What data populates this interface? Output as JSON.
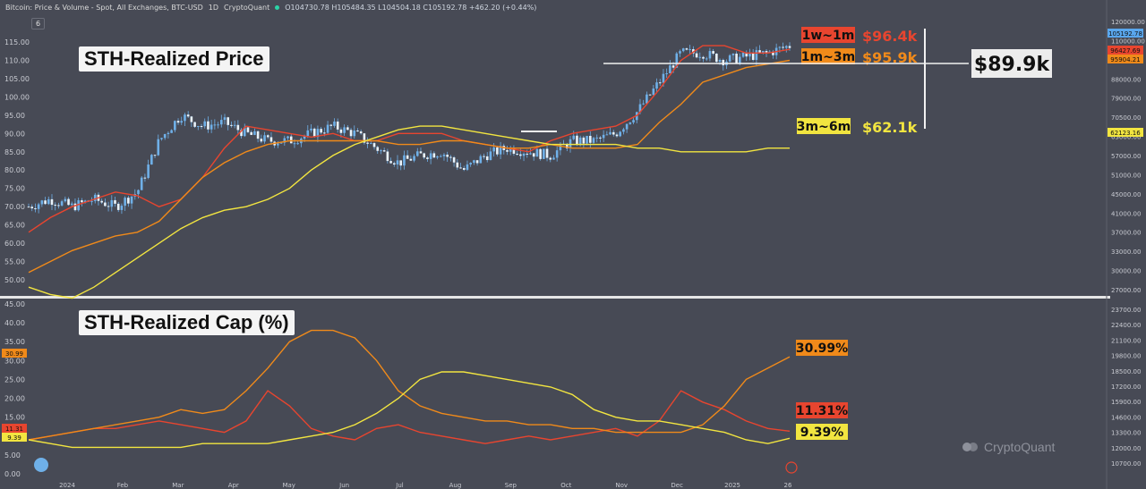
{
  "header": {
    "title": "Bitcoin: Price & Volume - Spot, All Exchanges, BTC-USD",
    "interval": "1D",
    "source": "CryptoQuant",
    "ohlc": "O104730.78 H105484.35 L104504.18 C105192.78 +462.20 (+0.44%)",
    "chip": "6"
  },
  "brand": "CryptoQuant",
  "colors": {
    "bg": "#474a55",
    "candles": "#6fb0e8",
    "red": "#e8452f",
    "orange": "#f08a1a",
    "yellow": "#f2e540"
  },
  "chart_data": [
    {
      "type": "line",
      "title": "STH-Realized Price",
      "yaxis_left": {
        "range": [
          0,
          120
        ],
        "ticks": [
          "50.00",
          "55.00",
          "60.00",
          "65.00",
          "70.00",
          "75.00",
          "80.00",
          "85.00",
          "90.00",
          "95.00",
          "100.00",
          "105.00",
          "110.00",
          "115.00"
        ]
      },
      "yaxis_right": {
        "scale": "log",
        "ticks": [
          "27000.00",
          "30000.00",
          "33000.00",
          "37000.00",
          "41000.00",
          "45000.00",
          "51000.00",
          "57000.00",
          "63000.00",
          "70500.00",
          "79000.00",
          "88000.00",
          "98500.00",
          "110000.00",
          "120000.00"
        ]
      },
      "x_ticks": [
        "2024",
        "Feb",
        "Mar",
        "Apr",
        "May",
        "Jun",
        "Jul",
        "Aug",
        "Sep",
        "Oct",
        "Nov",
        "Dec",
        "2025",
        "26"
      ],
      "price_marker": "105192.78",
      "series": [
        {
          "name": "1w~1m",
          "label_value": "$96.4k",
          "axis_value": "96427.69",
          "color": "#e8452f",
          "values": [
            63,
            67,
            70,
            72,
            74,
            73,
            70,
            72,
            78,
            86,
            92,
            91,
            90,
            89,
            90,
            88,
            88,
            90,
            90,
            90,
            88,
            87,
            86,
            85,
            88,
            90,
            91,
            92,
            95,
            102,
            110,
            114,
            114,
            112,
            112,
            113
          ]
        },
        {
          "name": "1m~3m",
          "label_value": "$95.9k",
          "axis_value": "95904.21",
          "color": "#f08a1a",
          "values": [
            52,
            55,
            58,
            60,
            62,
            63,
            66,
            72,
            78,
            82,
            85,
            87,
            88,
            88,
            88,
            88,
            88,
            87,
            87,
            88,
            88,
            87,
            86,
            86,
            87,
            86,
            86,
            86,
            87,
            93,
            98,
            104,
            106,
            108,
            109,
            110
          ]
        },
        {
          "name": "3m~6m",
          "label_value": "$62.1k",
          "axis_value": "62123.16",
          "color": "#f2e540",
          "values": [
            48,
            46,
            45,
            48,
            52,
            56,
            60,
            64,
            67,
            69,
            70,
            72,
            75,
            80,
            84,
            87,
            89,
            91,
            92,
            92,
            91,
            90,
            89,
            88,
            87,
            87,
            87,
            87,
            86,
            86,
            85,
            85,
            85,
            85,
            86,
            86
          ]
        }
      ],
      "annotations": [
        {
          "label": "$89.9k"
        }
      ]
    },
    {
      "type": "line",
      "title": "STH-Realized Cap (%)",
      "yaxis_left": {
        "range": [
          0,
          45
        ],
        "ticks": [
          "0.00",
          "5.00",
          "10.00",
          "15.00",
          "20.00",
          "25.00",
          "30.00",
          "35.00",
          "40.00",
          "45.00"
        ]
      },
      "yaxis_right": {
        "scale": "log",
        "ticks": [
          "10700.00",
          "12000.00",
          "13300.00",
          "14600.00",
          "15900.00",
          "17200.00",
          "18500.00",
          "19800.00",
          "21100.00",
          "22400.00",
          "23700.00"
        ]
      },
      "series": [
        {
          "name": "1w~1m",
          "label_value": "11.31%",
          "axis_value": "11.31",
          "color": "#e8452f",
          "values": [
            9,
            10,
            11,
            12,
            12,
            13,
            14,
            13,
            12,
            11,
            14,
            22,
            18,
            12,
            10,
            9,
            12,
            13,
            11,
            10,
            9,
            8,
            9,
            10,
            9,
            10,
            11,
            12,
            10,
            14,
            22,
            19,
            17,
            14,
            12,
            11.3
          ]
        },
        {
          "name": "1m~3m",
          "label_value": "30.99%",
          "axis_value": "30.99",
          "color": "#f08a1a",
          "values": [
            9,
            10,
            11,
            12,
            13,
            14,
            15,
            17,
            16,
            17,
            22,
            28,
            35,
            38,
            38,
            36,
            30,
            22,
            18,
            16,
            15,
            14,
            14,
            13,
            13,
            12,
            12,
            11,
            11,
            11,
            11,
            13,
            18,
            25,
            28,
            31
          ]
        },
        {
          "name": "3m~6m",
          "label_value": "9.39%",
          "axis_value": "9.39",
          "color": "#f2e540",
          "values": [
            9,
            8,
            7,
            7,
            7,
            7,
            7,
            7,
            8,
            8,
            8,
            8,
            9,
            10,
            11,
            13,
            16,
            20,
            25,
            27,
            27,
            26,
            25,
            24,
            23,
            21,
            17,
            15,
            14,
            14,
            13,
            12,
            11,
            9,
            8,
            9.4
          ]
        }
      ]
    }
  ]
}
